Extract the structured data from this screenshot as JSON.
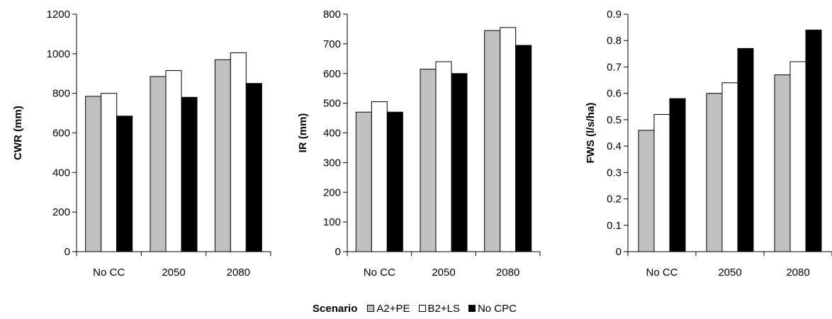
{
  "legend": {
    "title": "Scenario",
    "items": [
      {
        "name": "A2+PE",
        "color": "#c0c0c0"
      },
      {
        "name": "B2+LS",
        "color": "#ffffff"
      },
      {
        "name": "No CPC",
        "color": "#000000"
      }
    ]
  },
  "chart_data": [
    {
      "type": "bar",
      "categories": [
        "No CC",
        "2050",
        "2080"
      ],
      "ylabel": "CWR (mm)",
      "ylim": [
        0,
        1200
      ],
      "yticks": [
        0,
        200,
        400,
        600,
        800,
        1000,
        1200
      ],
      "ytick_labels": [
        "0",
        "200",
        "400",
        "600",
        "800",
        "1000",
        "1200"
      ],
      "series": [
        {
          "name": "A2+PE",
          "values": [
            785,
            885,
            970
          ]
        },
        {
          "name": "B2+LS",
          "values": [
            800,
            915,
            1005
          ]
        },
        {
          "name": "No CPC",
          "values": [
            685,
            780,
            850
          ]
        }
      ]
    },
    {
      "type": "bar",
      "categories": [
        "No CC",
        "2050",
        "2080"
      ],
      "ylabel": "IR (mm)",
      "ylim": [
        0,
        800
      ],
      "yticks": [
        0,
        100,
        200,
        300,
        400,
        500,
        600,
        700,
        800
      ],
      "ytick_labels": [
        "0",
        "100",
        "200",
        "300",
        "400",
        "500",
        "600",
        "700",
        "800"
      ],
      "series": [
        {
          "name": "A2+PE",
          "values": [
            470,
            615,
            745
          ]
        },
        {
          "name": "B2+LS",
          "values": [
            505,
            640,
            755
          ]
        },
        {
          "name": "No CPC",
          "values": [
            470,
            600,
            695
          ]
        }
      ]
    },
    {
      "type": "bar",
      "categories": [
        "No CC",
        "2050",
        "2080"
      ],
      "ylabel": "FWS (l/s/ha)",
      "ylim": [
        0,
        0.9
      ],
      "yticks": [
        0,
        0.1,
        0.2,
        0.3,
        0.4,
        0.5,
        0.6,
        0.7,
        0.8,
        0.9
      ],
      "ytick_labels": [
        "0",
        "0.1",
        "0.2",
        "0.3",
        "0.4",
        "0.5",
        "0.6",
        "0.7",
        "0.8",
        "0.9"
      ],
      "series": [
        {
          "name": "A2+PE",
          "values": [
            0.46,
            0.6,
            0.67
          ]
        },
        {
          "name": "B2+LS",
          "values": [
            0.52,
            0.64,
            0.72
          ]
        },
        {
          "name": "No CPC",
          "values": [
            0.58,
            0.77,
            0.84
          ]
        }
      ]
    }
  ]
}
